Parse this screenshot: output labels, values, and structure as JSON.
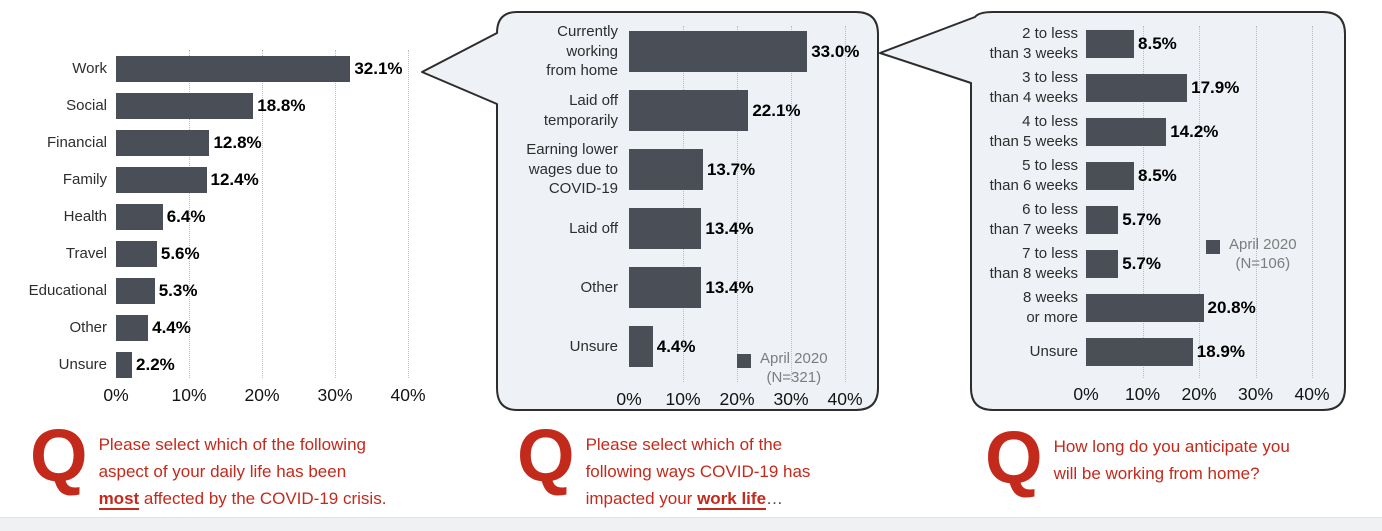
{
  "colors": {
    "bar": "#4a4e57",
    "question_red": "#c32a1c",
    "bubble_fill": "#eef1f5",
    "bubble_border": "#2d2d2d"
  },
  "chart_data": [
    {
      "type": "bar",
      "orientation": "horizontal",
      "title": "",
      "categories": [
        "Work",
        "Social",
        "Financial",
        "Family",
        "Health",
        "Travel",
        "Educational",
        "Other",
        "Unsure"
      ],
      "values": [
        32.1,
        18.8,
        12.8,
        12.4,
        6.4,
        5.6,
        5.3,
        4.4,
        2.2
      ],
      "value_labels": [
        "32.1%",
        "18.8%",
        "12.8%",
        "12.4%",
        "6.4%",
        "5.6%",
        "5.3%",
        "4.4%",
        "2.2%"
      ],
      "xlim": [
        0,
        40
      ],
      "x_ticks": [
        "0%",
        "10%",
        "20%",
        "30%",
        "40%"
      ],
      "grid": "dotted-vertical",
      "legend": null
    },
    {
      "type": "bar",
      "orientation": "horizontal",
      "title": "",
      "categories": [
        "Currently\nworking\nfrom home",
        "Laid off\ntemporarily",
        "Earning lower\nwages due to\nCOVID-19",
        "Laid off",
        "Other",
        "Unsure"
      ],
      "values": [
        33.0,
        22.1,
        13.7,
        13.4,
        13.4,
        4.4
      ],
      "value_labels": [
        "33.0%",
        "22.1%",
        "13.7%",
        "13.4%",
        "13.4%",
        "4.4%"
      ],
      "xlim": [
        0,
        40
      ],
      "x_ticks": [
        "0%",
        "10%",
        "20%",
        "30%",
        "40%"
      ],
      "grid": "dotted-vertical",
      "legend": {
        "label": "April 2020",
        "n_label": "(N=321)"
      }
    },
    {
      "type": "bar",
      "orientation": "horizontal",
      "title": "",
      "categories": [
        "2 to less\nthan 3 weeks",
        "3 to less\nthan 4 weeks",
        "4 to less\nthan 5 weeks",
        "5 to less\nthan 6 weeks",
        "6 to less\nthan 7 weeks",
        "7 to less\nthan 8 weeks",
        "8 weeks\nor more",
        "Unsure"
      ],
      "values": [
        8.5,
        17.9,
        14.2,
        8.5,
        5.7,
        5.7,
        20.8,
        18.9
      ],
      "value_labels": [
        "8.5%",
        "17.9%",
        "14.2%",
        "8.5%",
        "5.7%",
        "5.7%",
        "20.8%",
        "18.9%"
      ],
      "xlim": [
        0,
        40
      ],
      "x_ticks": [
        "0%",
        "10%",
        "20%",
        "30%",
        "40%"
      ],
      "grid": "dotted-vertical",
      "legend": {
        "label": "April 2020",
        "n_label": "(N=106)"
      }
    }
  ],
  "questions": [
    {
      "marker": "Q",
      "lines": [
        [
          {
            "t": "Please select which of the following"
          }
        ],
        [
          {
            "t": "aspect of your daily life has been"
          }
        ],
        [
          {
            "t": "most",
            "em": true
          },
          {
            "t": " affected by the COVID-19 crisis."
          }
        ]
      ]
    },
    {
      "marker": "Q",
      "lines": [
        [
          {
            "t": "Please select which of the"
          }
        ],
        [
          {
            "t": "following ways COVID-19 has"
          }
        ],
        [
          {
            "t": "impacted your "
          },
          {
            "t": "work life",
            "em": true
          },
          {
            "t": "…",
            "muted": true
          }
        ]
      ]
    },
    {
      "marker": "Q",
      "lines": [
        [
          {
            "t": "How long do you anticipate you"
          }
        ],
        [
          {
            "t": "will be working from home?"
          }
        ]
      ]
    }
  ]
}
